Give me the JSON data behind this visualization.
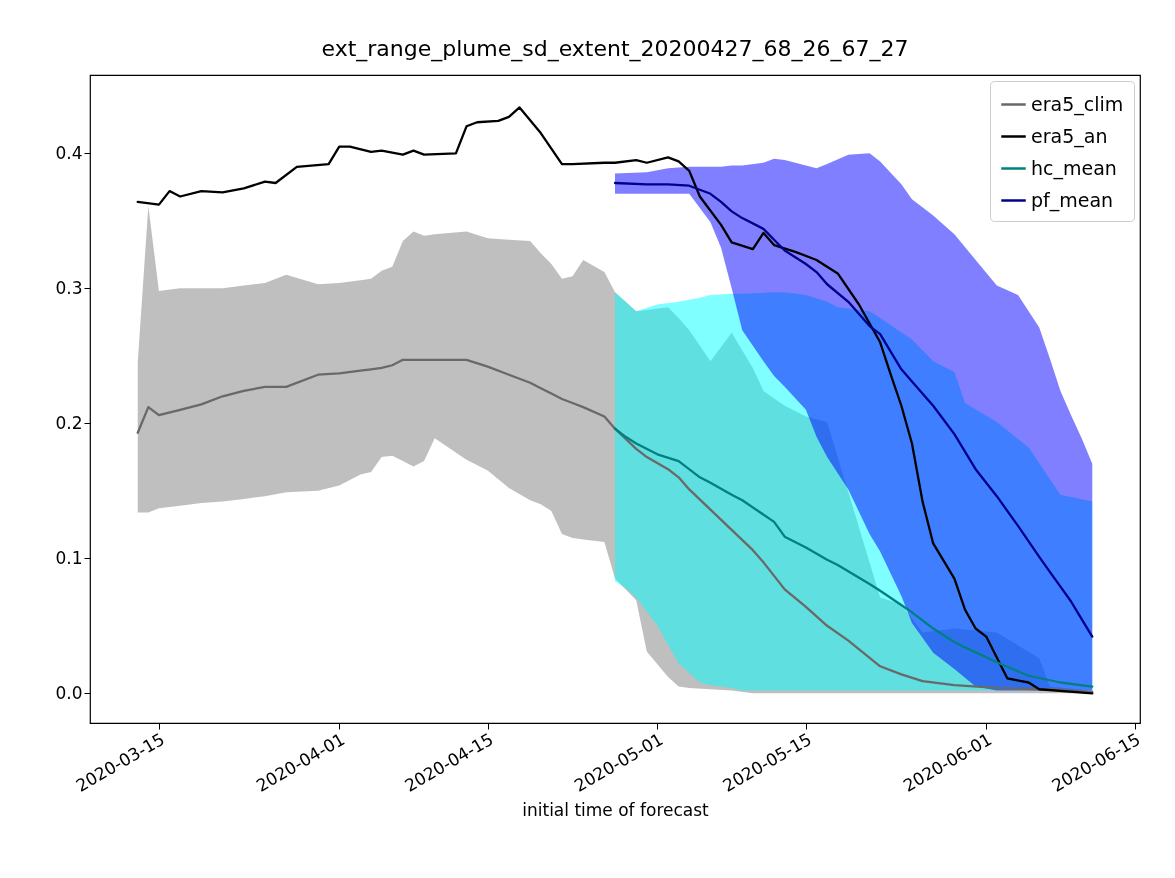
{
  "chart_data": {
    "type": "line",
    "title": "ext_range_plume_sd_extent_20200427_68_26_67_27",
    "xlabel": "initial time of forecast",
    "xlim": [
      "2020-03-08T12:00",
      "2020-06-15T12:00"
    ],
    "xticks": [
      "2020-03-15",
      "2020-04-01",
      "2020-04-15",
      "2020-05-01",
      "2020-05-15",
      "2020-06-01",
      "2020-06-15"
    ],
    "ylim": [
      -0.022,
      0.458
    ],
    "yticks": [
      {
        "value": 0,
        "label": "0.0"
      },
      {
        "value": 0.1,
        "label": "0.1"
      },
      {
        "value": 0.2,
        "label": "0.2"
      },
      {
        "value": 0.3,
        "label": "0.3"
      },
      {
        "value": 0.4,
        "label": "0.4"
      }
    ],
    "grid": false,
    "legend": "top right",
    "line_style": "solid",
    "marker": "none",
    "series": [
      {
        "name": "era5_clim",
        "color": "#696969",
        "x": [
          "2020-03-13",
          "2020-03-14",
          "2020-03-15",
          "2020-03-17",
          "2020-03-19",
          "2020-03-21",
          "2020-03-23",
          "2020-03-25",
          "2020-03-27",
          "2020-03-30",
          "2020-04-01",
          "2020-04-03",
          "2020-04-04",
          "2020-04-05",
          "2020-04-06",
          "2020-04-07",
          "2020-04-08",
          "2020-04-09",
          "2020-04-10",
          "2020-04-13",
          "2020-04-15",
          "2020-04-17",
          "2020-04-19",
          "2020-04-20",
          "2020-04-21",
          "2020-04-22",
          "2020-04-23",
          "2020-04-24",
          "2020-04-26",
          "2020-04-27",
          "2020-04-29",
          "2020-04-30",
          "2020-05-02",
          "2020-05-03",
          "2020-05-04",
          "2020-05-06",
          "2020-05-08",
          "2020-05-10",
          "2020-05-11",
          "2020-05-13",
          "2020-05-15",
          "2020-05-17",
          "2020-05-19",
          "2020-05-22",
          "2020-05-24",
          "2020-05-26",
          "2020-05-29",
          "2020-06-02",
          "2020-06-06",
          "2020-06-07",
          "2020-06-11"
        ],
        "values": [
          0.193,
          0.212,
          0.206,
          0.21,
          0.214,
          0.22,
          0.224,
          0.227,
          0.227,
          0.236,
          0.237,
          0.239,
          0.24,
          0.241,
          0.243,
          0.247,
          0.247,
          0.247,
          0.247,
          0.247,
          0.242,
          0.236,
          0.23,
          0.226,
          0.222,
          0.218,
          0.215,
          0.212,
          0.205,
          0.196,
          0.181,
          0.175,
          0.166,
          0.16,
          0.151,
          0.136,
          0.121,
          0.106,
          0.097,
          0.077,
          0.064,
          0.05,
          0.039,
          0.02,
          0.014,
          0.009,
          0.006,
          0.004,
          0.003,
          0.003,
          0.001
        ],
        "lower": [
          0.134,
          0.134,
          0.137,
          0.139,
          0.141,
          0.142,
          0.144,
          0.146,
          0.149,
          0.15,
          0.154,
          0.162,
          0.164,
          0.175,
          0.176,
          0.172,
          0.168,
          0.172,
          0.189,
          0.173,
          0.165,
          0.152,
          0.143,
          0.14,
          0.135,
          0.118,
          0.115,
          0.114,
          0.112,
          0.085,
          0.069,
          0.031,
          0.012,
          0.005,
          0.004,
          0.003,
          0.002,
          0,
          0,
          0,
          0,
          0,
          0,
          0,
          0,
          0,
          0,
          0,
          0,
          0,
          0
        ],
        "upper": [
          0.245,
          0.361,
          0.298,
          0.3,
          0.3,
          0.3,
          0.302,
          0.304,
          0.31,
          0.303,
          0.304,
          0.306,
          0.307,
          0.313,
          0.316,
          0.335,
          0.342,
          0.339,
          0.34,
          0.342,
          0.337,
          0.336,
          0.335,
          0.326,
          0.318,
          0.307,
          0.309,
          0.321,
          0.312,
          0.297,
          0.283,
          0.284,
          0.286,
          0.278,
          0.269,
          0.246,
          0.267,
          0.241,
          0.224,
          0.213,
          0.205,
          0.201,
          0.149,
          0.071,
          0.066,
          0.045,
          0.048,
          0.045,
          0.026,
          0.005,
          0.002
        ]
      },
      {
        "name": "era5_an",
        "color": "#000000",
        "x": [
          "2020-03-13",
          "2020-03-15",
          "2020-03-16",
          "2020-03-17",
          "2020-03-19",
          "2020-03-21",
          "2020-03-23",
          "2020-03-25",
          "2020-03-26",
          "2020-03-28",
          "2020-03-31",
          "2020-04-01",
          "2020-04-02",
          "2020-04-04",
          "2020-04-05",
          "2020-04-07",
          "2020-04-08",
          "2020-04-09",
          "2020-04-12",
          "2020-04-13",
          "2020-04-14",
          "2020-04-16",
          "2020-04-17",
          "2020-04-18",
          "2020-04-20",
          "2020-04-22",
          "2020-04-23",
          "2020-04-26",
          "2020-04-27",
          "2020-04-29",
          "2020-04-30",
          "2020-05-02",
          "2020-05-03",
          "2020-05-04",
          "2020-05-05",
          "2020-05-07",
          "2020-05-08",
          "2020-05-10",
          "2020-05-11",
          "2020-05-12",
          "2020-05-14",
          "2020-05-16",
          "2020-05-18",
          "2020-05-20",
          "2020-05-22",
          "2020-05-23",
          "2020-05-24",
          "2020-05-25",
          "2020-05-26",
          "2020-05-27",
          "2020-05-29",
          "2020-05-30",
          "2020-05-31",
          "2020-06-01",
          "2020-06-03",
          "2020-06-05",
          "2020-06-06",
          "2020-06-11"
        ],
        "values": [
          0.364,
          0.362,
          0.372,
          0.368,
          0.372,
          0.371,
          0.374,
          0.379,
          0.378,
          0.39,
          0.392,
          0.405,
          0.405,
          0.401,
          0.402,
          0.399,
          0.402,
          0.399,
          0.4,
          0.42,
          0.423,
          0.424,
          0.427,
          0.434,
          0.415,
          0.392,
          0.392,
          0.393,
          0.393,
          0.395,
          0.393,
          0.397,
          0.394,
          0.387,
          0.368,
          0.347,
          0.334,
          0.329,
          0.341,
          0.332,
          0.327,
          0.321,
          0.311,
          0.288,
          0.26,
          0.236,
          0.213,
          0.185,
          0.142,
          0.111,
          0.085,
          0.062,
          0.048,
          0.042,
          0.011,
          0.008,
          0.003,
          0
        ]
      },
      {
        "name": "hc_mean",
        "color": "#008080",
        "x": [
          "2020-04-27",
          "2020-04-28",
          "2020-04-29",
          "2020-05-01",
          "2020-05-03",
          "2020-05-05",
          "2020-05-06",
          "2020-05-08",
          "2020-05-09",
          "2020-05-12",
          "2020-05-13",
          "2020-05-15",
          "2020-05-17",
          "2020-05-18",
          "2020-05-21",
          "2020-05-22",
          "2020-05-25",
          "2020-05-27",
          "2020-05-29",
          "2020-05-30",
          "2020-06-02",
          "2020-06-05",
          "2020-06-08",
          "2020-06-11"
        ],
        "values": [
          0.196,
          0.19,
          0.185,
          0.177,
          0.172,
          0.16,
          0.156,
          0.147,
          0.143,
          0.127,
          0.116,
          0.108,
          0.099,
          0.095,
          0.081,
          0.076,
          0.06,
          0.048,
          0.038,
          0.034,
          0.023,
          0.013,
          0.008,
          0.005
        ],
        "lower": [
          0.083,
          0.078,
          0.071,
          0.05,
          0.022,
          0.008,
          0.006,
          0.004,
          0.002,
          0.002,
          0.002,
          0.002,
          0.002,
          0.002,
          0.002,
          0.002,
          0.002,
          0.002,
          0.002,
          0.002,
          0.002,
          0.002,
          0.002,
          0.002
        ],
        "upper": [
          0.297,
          0.29,
          0.283,
          0.288,
          0.29,
          0.293,
          0.295,
          0.296,
          0.296,
          0.297,
          0.297,
          0.295,
          0.29,
          0.286,
          0.283,
          0.278,
          0.262,
          0.246,
          0.238,
          0.215,
          0.201,
          0.182,
          0.147,
          0.142
        ]
      },
      {
        "name": "pf_mean",
        "color": "#00008b",
        "x": [
          "2020-04-27",
          "2020-04-30",
          "2020-05-02",
          "2020-05-04",
          "2020-05-06",
          "2020-05-07",
          "2020-05-08",
          "2020-05-09",
          "2020-05-11",
          "2020-05-12",
          "2020-05-13",
          "2020-05-15",
          "2020-05-16",
          "2020-05-17",
          "2020-05-19",
          "2020-05-21",
          "2020-05-22",
          "2020-05-24",
          "2020-05-25",
          "2020-05-27",
          "2020-05-29",
          "2020-05-31",
          "2020-06-02",
          "2020-06-04",
          "2020-06-06",
          "2020-06-07",
          "2020-06-08",
          "2020-06-09",
          "2020-06-10",
          "2020-06-11"
        ],
        "values": [
          0.378,
          0.377,
          0.377,
          0.376,
          0.37,
          0.364,
          0.357,
          0.352,
          0.344,
          0.336,
          0.328,
          0.318,
          0.312,
          0.303,
          0.29,
          0.272,
          0.266,
          0.24,
          0.231,
          0.213,
          0.192,
          0.166,
          0.146,
          0.124,
          0.101,
          0.09,
          0.079,
          0.068,
          0.055,
          0.042
        ],
        "lower": [
          0.37,
          0.37,
          0.37,
          0.37,
          0.349,
          0.33,
          0.3,
          0.269,
          0.246,
          0.235,
          0.227,
          0.21,
          0.19,
          0.175,
          0.151,
          0.118,
          0.105,
          0.072,
          0.052,
          0.03,
          0.018,
          0.005,
          0.002,
          0.002,
          0.002,
          0.002,
          0.002,
          0.002,
          0.002,
          0.002
        ],
        "upper": [
          0.385,
          0.386,
          0.389,
          0.39,
          0.39,
          0.39,
          0.391,
          0.391,
          0.393,
          0.396,
          0.395,
          0.391,
          0.389,
          0.392,
          0.399,
          0.4,
          0.394,
          0.377,
          0.366,
          0.354,
          0.34,
          0.321,
          0.302,
          0.295,
          0.271,
          0.248,
          0.224,
          0.206,
          0.189,
          0.17
        ]
      }
    ]
  }
}
